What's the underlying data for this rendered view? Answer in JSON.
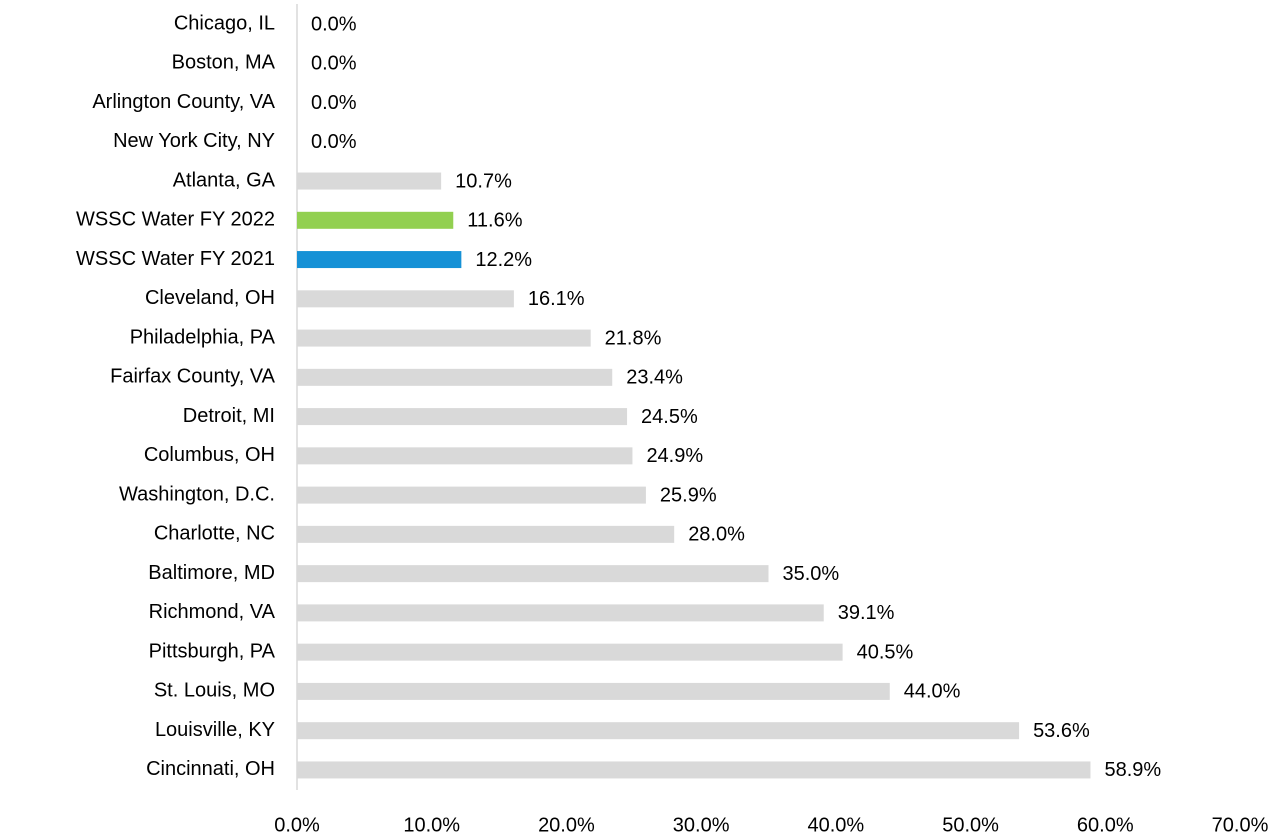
{
  "chart_data": {
    "type": "barh",
    "categories": [
      "Chicago, IL",
      "Boston, MA",
      "Arlington County, VA",
      "New York City, NY",
      "Atlanta, GA",
      "WSSC Water FY 2022",
      "WSSC Water FY 2021",
      "Cleveland, OH",
      "Philadelphia, PA",
      "Fairfax County, VA",
      "Detroit, MI",
      "Columbus, OH",
      "Washington, D.C.",
      "Charlotte, NC",
      "Baltimore, MD",
      "Richmond, VA",
      "Pittsburgh, PA",
      "St. Louis, MO",
      "Louisville, KY",
      "Cincinnati, OH"
    ],
    "values": [
      0,
      0,
      0,
      0,
      10.7,
      11.6,
      12.2,
      16.1,
      21.8,
      23.4,
      24.5,
      24.9,
      25.9,
      28.0,
      35.0,
      39.1,
      40.5,
      44.0,
      53.6,
      58.9
    ],
    "value_labels": [
      "0.0%",
      "0.0%",
      "0.0%",
      "0.0%",
      "10.7%",
      "11.6%",
      "12.2%",
      "16.1%",
      "21.8%",
      "23.4%",
      "24.5%",
      "24.9%",
      "25.9%",
      "28.0%",
      "35.0%",
      "39.1%",
      "40.5%",
      "44.0%",
      "53.6%",
      "58.9%"
    ],
    "colors": [
      "#d9d9d9",
      "#d9d9d9",
      "#d9d9d9",
      "#d9d9d9",
      "#d9d9d9",
      "#92d050",
      "#1591d6",
      "#d9d9d9",
      "#d9d9d9",
      "#d9d9d9",
      "#d9d9d9",
      "#d9d9d9",
      "#d9d9d9",
      "#d9d9d9",
      "#d9d9d9",
      "#d9d9d9",
      "#d9d9d9",
      "#d9d9d9",
      "#d9d9d9",
      "#d9d9d9"
    ],
    "xlim": [
      0,
      70
    ],
    "xticks": [
      {
        "value": 0,
        "label": "0.0%"
      },
      {
        "value": 10,
        "label": "10.0%"
      },
      {
        "value": 20,
        "label": "20.0%"
      },
      {
        "value": 30,
        "label": "30.0%"
      },
      {
        "value": 40,
        "label": "40.0%"
      },
      {
        "value": 50,
        "label": "50.0%"
      },
      {
        "value": 60,
        "label": "60.0%"
      },
      {
        "value": 70,
        "label": "70.0%"
      }
    ],
    "grid": false
  }
}
